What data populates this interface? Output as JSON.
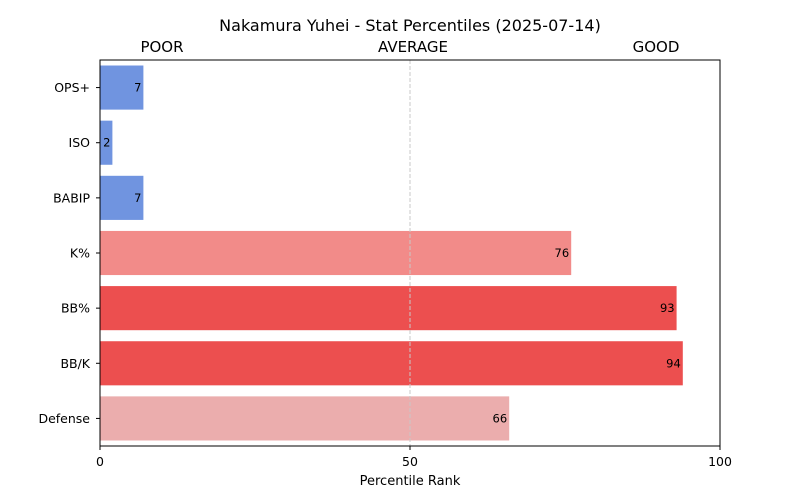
{
  "chart_data": {
    "type": "bar",
    "orientation": "horizontal",
    "title": "Nakamura Yuhei - Stat Percentiles (2025-07-14)",
    "xlabel": "Percentile Rank",
    "ylabel": "",
    "xlim": [
      0,
      100
    ],
    "x_ticks": [
      "0",
      "50",
      "100"
    ],
    "zone_labels": {
      "left": "POOR",
      "center": "AVERAGE",
      "right": "GOOD"
    },
    "reference_line": 50,
    "categories": [
      "OPS+",
      "ISO",
      "BABIP",
      "K%",
      "BB%",
      "BB/K",
      "Defense"
    ],
    "values": [
      7,
      2,
      7,
      76,
      93,
      94,
      66
    ],
    "colors": [
      "#7094e0",
      "#7094e0",
      "#7094e0",
      "#f28b89",
      "#ec4f4f",
      "#ec4f4f",
      "#ebadad"
    ]
  }
}
